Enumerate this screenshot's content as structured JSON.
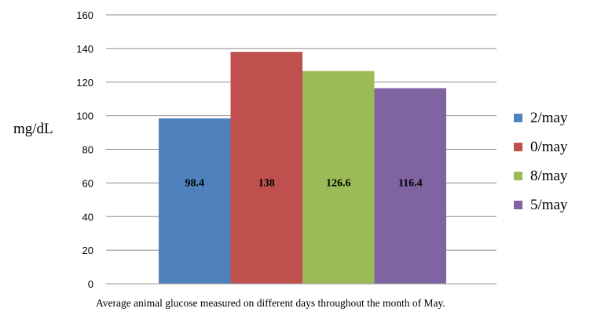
{
  "chart_data": {
    "type": "bar",
    "categories": [
      "2/may",
      "0/may",
      "8/may",
      "5/may"
    ],
    "values": [
      98.4,
      138,
      126.6,
      116.4
    ],
    "data_labels": [
      "98.4",
      "138",
      "126.6",
      "116.4"
    ],
    "colors": [
      "#4F81BD",
      "#C0504D",
      "#9BBB59",
      "#8064A2"
    ],
    "ylabel": "mg/dL",
    "xlabel": "Average animal  glucose measured on different  days throughout the month of May.",
    "ylim": [
      0,
      160
    ],
    "yticks": [
      "0",
      "20",
      "40",
      "60",
      "80",
      "100",
      "120",
      "140",
      "160"
    ],
    "grid": true,
    "legend_position": "right"
  }
}
